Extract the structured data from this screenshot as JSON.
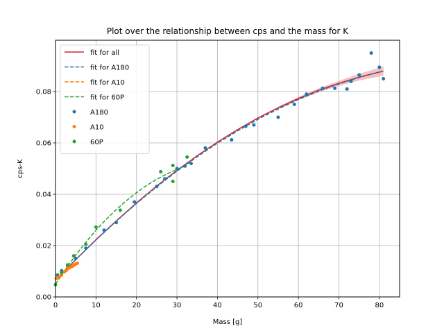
{
  "chart_data": {
    "type": "scatter",
    "title": "Plot over the relationship between cps and the mass for K",
    "xlabel": "Mass [g]",
    "ylabel": "cps-K",
    "xlim": [
      0,
      85
    ],
    "ylim": [
      0,
      0.1
    ],
    "xticks": [
      0,
      10,
      20,
      30,
      40,
      50,
      60,
      70,
      80
    ],
    "yticks": [
      0.0,
      0.02,
      0.04,
      0.06,
      0.08
    ],
    "xtick_labels": [
      "0",
      "10",
      "20",
      "30",
      "40",
      "50",
      "60",
      "70",
      "80"
    ],
    "ytick_labels": [
      "0.00",
      "0.02",
      "0.04",
      "0.06",
      "0.08"
    ],
    "grid": true,
    "legend_position": "top-left",
    "colors": {
      "fit_all": "#d62728",
      "a180": "#1f77b4",
      "a10": "#ff7f0e",
      "p60": "#2ca02c",
      "band": "#f4a6a6",
      "grid": "#b0b0b0"
    },
    "fits": [
      {
        "name": "fit for all",
        "color": "#d62728",
        "dash": "solid",
        "x": [
          0,
          5,
          10,
          15,
          20,
          25,
          30,
          35,
          40,
          45,
          50,
          55,
          60,
          65,
          70,
          75,
          81
        ],
        "y": [
          0.0065,
          0.0145,
          0.0223,
          0.0296,
          0.0366,
          0.0432,
          0.0493,
          0.055,
          0.0603,
          0.0652,
          0.0697,
          0.0737,
          0.0773,
          0.0805,
          0.0832,
          0.0856,
          0.088
        ]
      },
      {
        "name": "fit for A180",
        "color": "#1f77b4",
        "dash": "dashed",
        "x": [
          0,
          5,
          10,
          15,
          20,
          25,
          30,
          35,
          40,
          45,
          50,
          55,
          60,
          65,
          70,
          75,
          81
        ],
        "y": [
          0.0065,
          0.0145,
          0.0222,
          0.0295,
          0.0364,
          0.0429,
          0.049,
          0.0546,
          0.0599,
          0.0647,
          0.0692,
          0.0732,
          0.0769,
          0.0802,
          0.083,
          0.0855,
          0.088
        ]
      },
      {
        "name": "fit for A10",
        "color": "#ff7f0e",
        "dash": "dashed",
        "x": [
          0,
          1,
          2,
          3,
          4,
          5,
          5.5
        ],
        "y": [
          0.0068,
          0.0081,
          0.0093,
          0.0106,
          0.0118,
          0.013,
          0.0137
        ]
      },
      {
        "name": "fit for 60P",
        "color": "#2ca02c",
        "dash": "dashed",
        "x": [
          0,
          2.5,
          5,
          7.5,
          10,
          12.5,
          15,
          17.5,
          20,
          22.5,
          25,
          27.5,
          30,
          32.5
        ],
        "y": [
          0.005,
          0.0108,
          0.0163,
          0.0213,
          0.026,
          0.0302,
          0.034,
          0.0375,
          0.0406,
          0.0434,
          0.0458,
          0.0479,
          0.0497,
          0.0512
        ]
      }
    ],
    "band": {
      "x": [
        55,
        60,
        65,
        70,
        75,
        81
      ],
      "lower": [
        0.0733,
        0.0767,
        0.0797,
        0.0822,
        0.0843,
        0.0862
      ],
      "upper": [
        0.0741,
        0.0779,
        0.0813,
        0.0842,
        0.0869,
        0.0898
      ]
    },
    "series": [
      {
        "name": "A180",
        "color": "#1f77b4",
        "x": [
          0.5,
          1.5,
          3,
          5,
          7.5,
          12,
          15,
          19.5,
          25,
          27,
          30,
          32,
          33.5,
          37,
          43.5,
          47,
          49,
          55,
          59,
          62,
          66,
          69,
          72,
          73,
          75,
          78,
          80,
          81
        ],
        "y": [
          0.0085,
          0.0102,
          0.012,
          0.015,
          0.019,
          0.026,
          0.029,
          0.037,
          0.043,
          0.046,
          0.05,
          0.051,
          0.052,
          0.058,
          0.0612,
          0.0665,
          0.067,
          0.07,
          0.075,
          0.079,
          0.0813,
          0.0813,
          0.081,
          0.084,
          0.0865,
          0.095,
          0.0895,
          0.085
        ]
      },
      {
        "name": "A10",
        "color": "#ff7f0e",
        "x": [
          0.2,
          0.8,
          1.5,
          2.2,
          2.7,
          3.2,
          3.6,
          4.0,
          4.3,
          4.7,
          5.0,
          5.4
        ],
        "y": [
          0.0072,
          0.0078,
          0.0085,
          0.0098,
          0.0104,
          0.0112,
          0.0115,
          0.0118,
          0.0121,
          0.0125,
          0.0128,
          0.0131
        ]
      },
      {
        "name": "60P",
        "color": "#2ca02c",
        "x": [
          0,
          1.5,
          3,
          4.5,
          7.5,
          10,
          16,
          26,
          29,
          29,
          32.5
        ],
        "y": [
          0.0048,
          0.0095,
          0.0125,
          0.016,
          0.0205,
          0.0272,
          0.0338,
          0.0488,
          0.0512,
          0.045,
          0.0545
        ]
      }
    ]
  }
}
